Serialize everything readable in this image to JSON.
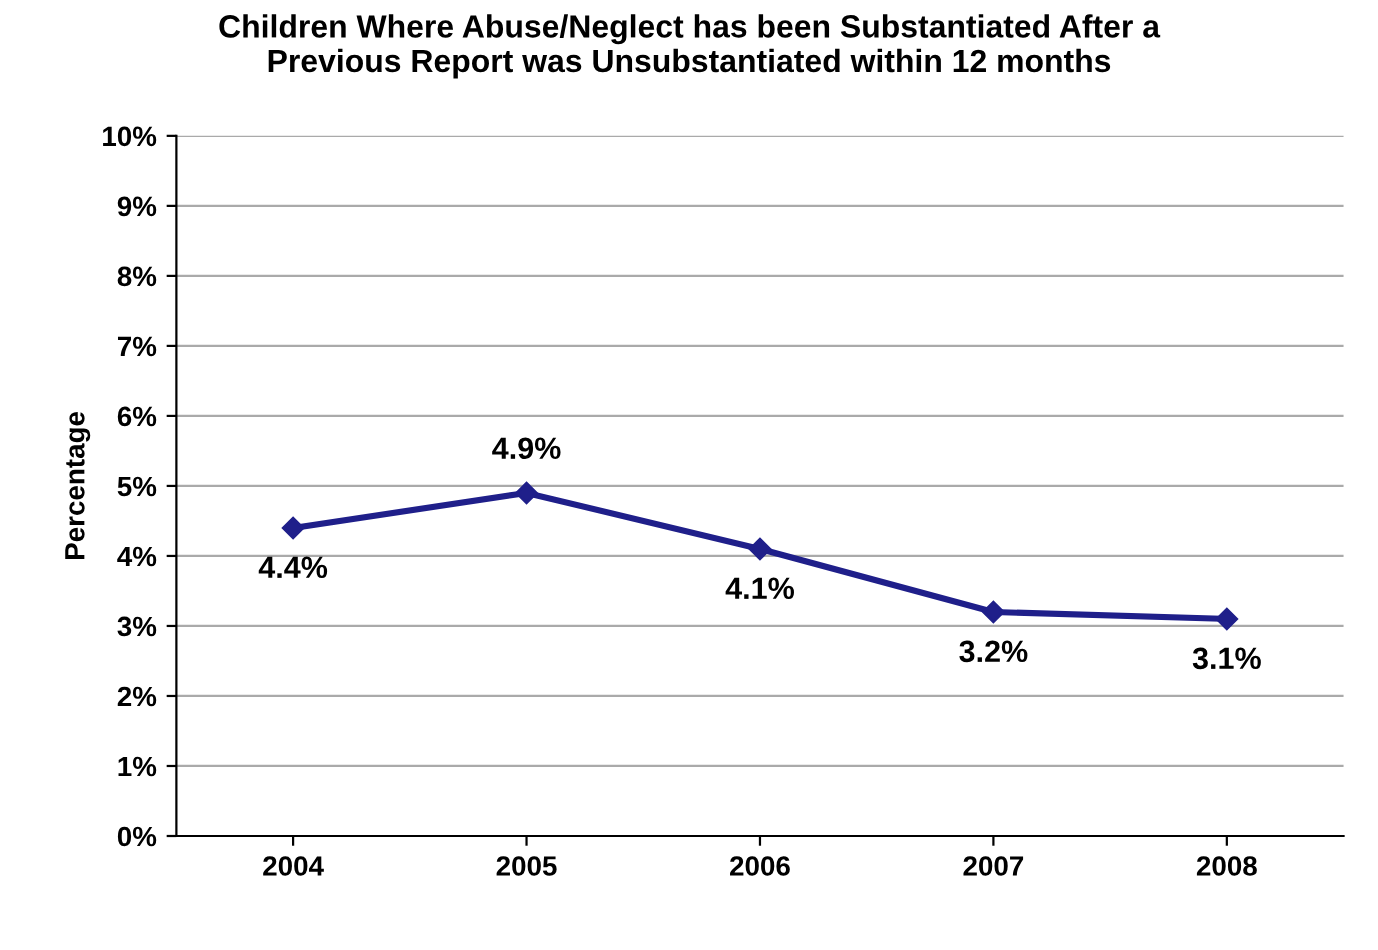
{
  "chart_data": {
    "type": "line",
    "title": "Children Where Abuse/Neglect has been Substantiated After a\nPrevious Report was Unsubstantiated within 12 months",
    "ylabel": "Percentage",
    "categories": [
      "2004",
      "2005",
      "2006",
      "2007",
      "2008"
    ],
    "series": [
      {
        "color": "#1f1f8a",
        "values": [
          4.4,
          4.9,
          4.1,
          3.2,
          3.1
        ],
        "value_labels": [
          "4.4%",
          "4.9%",
          "4.1%",
          "3.2%",
          "3.1%"
        ]
      }
    ],
    "ylim": [
      0,
      10
    ],
    "yticks": [
      {
        "value": 0,
        "label": "0%"
      },
      {
        "value": 1,
        "label": "1%"
      },
      {
        "value": 2,
        "label": "2%"
      },
      {
        "value": 3,
        "label": "3%"
      },
      {
        "value": 4,
        "label": "4%"
      },
      {
        "value": 5,
        "label": "5%"
      },
      {
        "value": 6,
        "label": "6%"
      },
      {
        "value": 7,
        "label": "7%"
      },
      {
        "value": 8,
        "label": "8%"
      },
      {
        "value": 9,
        "label": "9%"
      },
      {
        "value": 10,
        "label": "10%"
      }
    ],
    "grid": "y",
    "marker": "diamond",
    "line_style": "solid",
    "legend": false
  }
}
